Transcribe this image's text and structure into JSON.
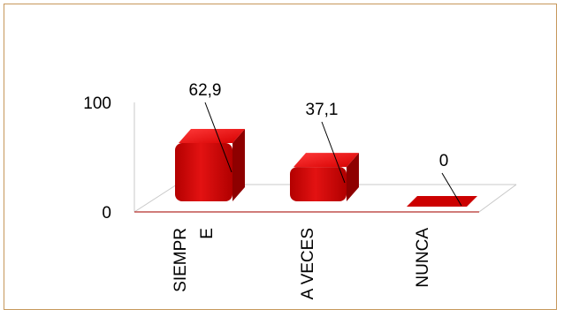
{
  "chart_data": {
    "type": "bar",
    "categories": [
      "SIEMPRE",
      "A VECES",
      "NUNCA"
    ],
    "category_label_lines": [
      [
        "SIEMPR",
        "E"
      ],
      [
        "A VECES"
      ],
      [
        "NUNCA"
      ]
    ],
    "values": [
      62.9,
      37.1,
      0
    ],
    "data_labels": [
      "62,9",
      "37,1",
      "0"
    ],
    "y_ticks": [
      0,
      100
    ],
    "y_tick_labels": [
      "0",
      "100"
    ],
    "ylim": [
      0,
      100
    ],
    "title": "",
    "xlabel": "",
    "ylabel": "",
    "grid": false,
    "legend": "none",
    "colors": {
      "bar_front": "#cc0000",
      "bar_top": "#e81010",
      "bar_side": "#8e0000",
      "floor_line": "#c0504d",
      "axis": "#c8c8c8",
      "border": "#c6975a"
    }
  }
}
